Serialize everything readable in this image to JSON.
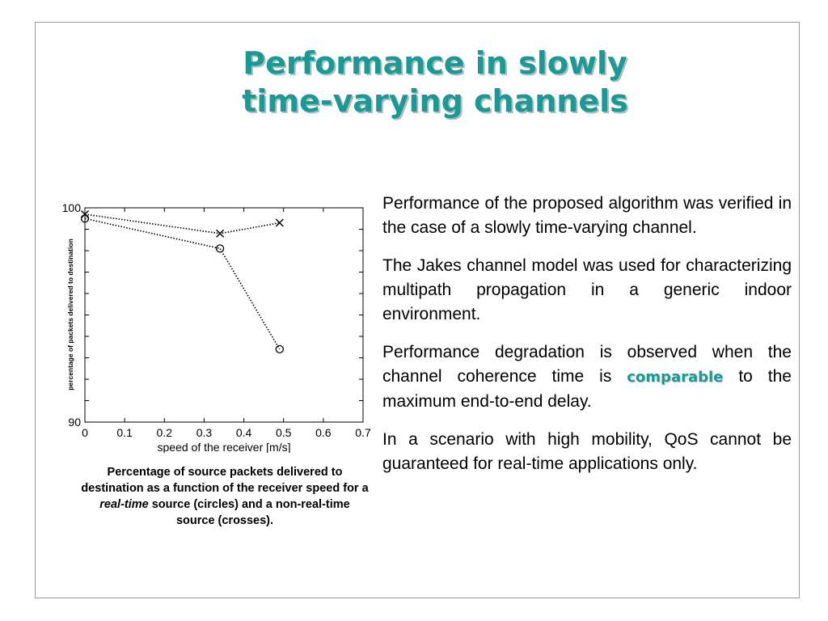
{
  "slide": {
    "title_line1": "Performance in slowly",
    "title_line2": "time-varying channels"
  },
  "caption": {
    "part1": "Percentage of source packets delivered to destination as a function of the receiver speed for a ",
    "emph": "real-time",
    "part2": " source (circles) and a non-real-time source (crosses)."
  },
  "paragraphs": {
    "p1": "Performance of the proposed algorithm was verified in the case of a slowly time-varying channel.",
    "p2": "The Jakes channel model was used for characterizing multipath propagation in a generic indoor environment.",
    "p3_before": "Performance degradation is observed when the channel coherence time is ",
    "p3_highlight": "comparable",
    "p3_after": " to the maximum end-to-end delay.",
    "p4": "In a scenario with high mobility, QoS cannot be guaranteed for real-time applications only."
  },
  "colors": {
    "accent": "#1a9a96",
    "frame": "#9a9a9a"
  },
  "chart_data": {
    "type": "line",
    "xlabel": "speed of the receiver [m/s]",
    "ylabel": "percentage of packets delivered to destination",
    "xlim": [
      0,
      0.7
    ],
    "ylim": [
      90,
      100
    ],
    "x_ticks": [
      "0",
      "0.1",
      "0.2",
      "0.3",
      "0.4",
      "0.5",
      "0.6",
      "0.7"
    ],
    "y_ticks": [
      "90",
      "100"
    ],
    "series": [
      {
        "marker": "circle",
        "x": [
          0,
          0.34,
          0.49
        ],
        "y": [
          99.5,
          98.1,
          93.4
        ]
      },
      {
        "marker": "cross",
        "x": [
          0,
          0.34,
          0.49
        ],
        "y": [
          99.7,
          98.8,
          99.3
        ]
      }
    ]
  }
}
